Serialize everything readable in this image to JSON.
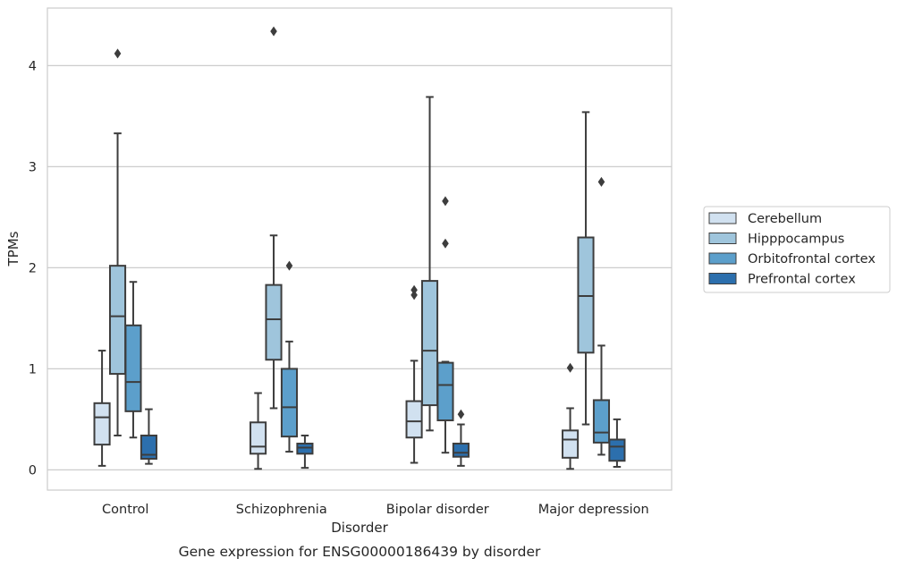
{
  "chart_data": {
    "type": "box",
    "caption": "Gene expression for ENSG00000186439 by disorder",
    "xlabel": "Disorder",
    "ylabel": "TPMs",
    "ylim": [
      -0.2,
      4.57
    ],
    "yticks": [
      0,
      1,
      2,
      3,
      4
    ],
    "grid": "horizontal",
    "legend_position": "right",
    "categories": [
      "Control",
      "Schizophrenia",
      "Bipolar disorder",
      "Major depression"
    ],
    "series": [
      {
        "name": "Cerebellum",
        "color": "#d1e1f0",
        "boxes": [
          {
            "whisker_low": 0.04,
            "q1": 0.25,
            "median": 0.52,
            "q3": 0.66,
            "whisker_high": 1.18,
            "outliers": []
          },
          {
            "whisker_low": 0.01,
            "q1": 0.16,
            "median": 0.23,
            "q3": 0.47,
            "whisker_high": 0.76,
            "outliers": []
          },
          {
            "whisker_low": 0.07,
            "q1": 0.32,
            "median": 0.48,
            "q3": 0.68,
            "whisker_high": 1.08,
            "outliers": [
              1.73,
              1.78
            ]
          },
          {
            "whisker_low": 0.01,
            "q1": 0.12,
            "median": 0.3,
            "q3": 0.39,
            "whisker_high": 0.61,
            "outliers": [
              1.01
            ]
          }
        ]
      },
      {
        "name": "Hipppocampus",
        "color": "#9fc5dc",
        "boxes": [
          {
            "whisker_low": 0.34,
            "q1": 0.95,
            "median": 1.52,
            "q3": 2.02,
            "whisker_high": 3.33,
            "outliers": [
              4.12
            ]
          },
          {
            "whisker_low": 0.61,
            "q1": 1.09,
            "median": 1.49,
            "q3": 1.83,
            "whisker_high": 2.32,
            "outliers": [
              4.34
            ]
          },
          {
            "whisker_low": 0.39,
            "q1": 0.64,
            "median": 1.18,
            "q3": 1.87,
            "whisker_high": 3.69,
            "outliers": []
          },
          {
            "whisker_low": 0.45,
            "q1": 1.16,
            "median": 1.72,
            "q3": 2.3,
            "whisker_high": 3.54,
            "outliers": []
          }
        ]
      },
      {
        "name": "Orbitofrontal cortex",
        "color": "#5c9fcb",
        "boxes": [
          {
            "whisker_low": 0.32,
            "q1": 0.58,
            "median": 0.87,
            "q3": 1.43,
            "whisker_high": 1.86,
            "outliers": []
          },
          {
            "whisker_low": 0.18,
            "q1": 0.33,
            "median": 0.62,
            "q3": 1.0,
            "whisker_high": 1.27,
            "outliers": [
              2.02
            ]
          },
          {
            "whisker_low": 0.17,
            "q1": 0.49,
            "median": 0.84,
            "q3": 1.06,
            "whisker_high": 1.07,
            "outliers": [
              2.24,
              2.66
            ]
          },
          {
            "whisker_low": 0.15,
            "q1": 0.27,
            "median": 0.37,
            "q3": 0.69,
            "whisker_high": 1.23,
            "outliers": [
              2.85
            ]
          }
        ]
      },
      {
        "name": "Prefrontal cortex",
        "color": "#2c6fad",
        "boxes": [
          {
            "whisker_low": 0.06,
            "q1": 0.11,
            "median": 0.15,
            "q3": 0.34,
            "whisker_high": 0.6,
            "outliers": []
          },
          {
            "whisker_low": 0.02,
            "q1": 0.16,
            "median": 0.22,
            "q3": 0.26,
            "whisker_high": 0.34,
            "outliers": []
          },
          {
            "whisker_low": 0.04,
            "q1": 0.13,
            "median": 0.17,
            "q3": 0.26,
            "whisker_high": 0.45,
            "outliers": [
              0.55
            ]
          },
          {
            "whisker_low": 0.03,
            "q1": 0.09,
            "median": 0.23,
            "q3": 0.3,
            "whisker_high": 0.5,
            "outliers": []
          }
        ]
      }
    ]
  }
}
